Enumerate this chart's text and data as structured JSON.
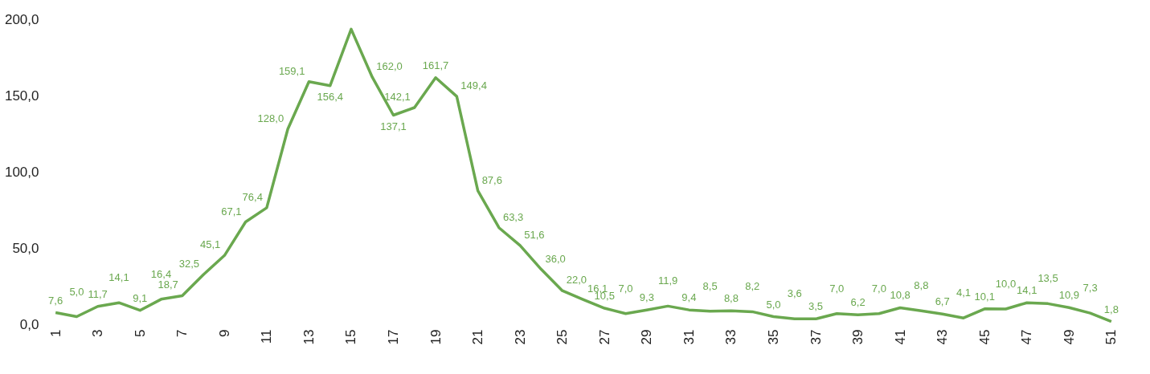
{
  "chart_data": {
    "type": "line",
    "categories": [
      "1",
      null,
      "3",
      null,
      "5",
      null,
      "7",
      null,
      "9",
      null,
      "11",
      null,
      "13",
      null,
      "15",
      null,
      "17",
      null,
      "19",
      null,
      "21",
      null,
      "23",
      null,
      "25",
      null,
      "27",
      null,
      "29",
      null,
      "31",
      null,
      "33",
      null,
      "35",
      null,
      "37",
      null,
      "39",
      null,
      "41",
      null,
      "43",
      null,
      "45",
      null,
      "47",
      null,
      "49",
      null,
      "51"
    ],
    "series": [
      {
        "color": "#6aa84f",
        "values": [
          7.6,
          5.0,
          11.7,
          14.1,
          9.1,
          16.4,
          18.7,
          32.5,
          45.1,
          67.1,
          76.4,
          128.0,
          159.1,
          156.4,
          193.5,
          162.0,
          137.1,
          142.1,
          161.7,
          149.4,
          87.6,
          63.3,
          51.6,
          36.0,
          22.0,
          16.1,
          10.5,
          7.0,
          9.3,
          11.9,
          9.4,
          8.5,
          8.8,
          8.2,
          5.0,
          3.6,
          3.5,
          7.0,
          6.2,
          7.0,
          10.8,
          8.8,
          6.7,
          4.1,
          10.1,
          10.0,
          14.1,
          13.5,
          10.9,
          7.3,
          1.8
        ],
        "value_labels": [
          "7,6",
          "5,0",
          "11,7",
          "14,1",
          "9,1",
          "16,4",
          "18,7",
          "32,5",
          "45,1",
          "67,1",
          "76,4",
          "128,0",
          "159,1",
          "156,4",
          null,
          "162,0",
          "137,1",
          "142,1",
          "161,7",
          "149,4",
          "87,6",
          "63,3",
          "51,6",
          "36,0",
          "22,0",
          "16,1",
          "10,5",
          "7,0",
          "9,3",
          "11,9",
          "9,4",
          "8,5",
          "8,8",
          "8,2",
          "5,0",
          "3,6",
          "3,5",
          "7,0",
          "6,2",
          "7,0",
          "10,8",
          "8,8",
          "6,7",
          "4,1",
          "10,1",
          "10,0",
          "14,1",
          "13,5",
          "10,9",
          "7,3",
          "1,8"
        ]
      }
    ],
    "ylim": [
      0,
      200
    ],
    "yticks": [
      {
        "value": 0,
        "label": "0,0"
      },
      {
        "value": 50,
        "label": "50,0"
      },
      {
        "value": 100,
        "label": "100,0"
      },
      {
        "value": 150,
        "label": "150,0"
      },
      {
        "value": 200,
        "label": "200,0"
      }
    ],
    "grid": false,
    "marker": "none",
    "line_style": "solid"
  }
}
